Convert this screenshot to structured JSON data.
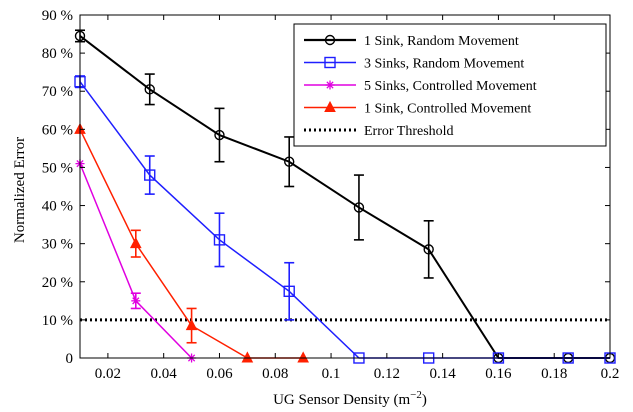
{
  "chart_data": {
    "type": "line",
    "title": "",
    "xlabel": "UG Sensor Density (m",
    "xlabel_sup": "−2",
    "xlabel_close": ")",
    "ylabel": "Normalized Error",
    "xlim": [
      0.01,
      0.2
    ],
    "ylim": [
      0,
      90
    ],
    "x_ticks": [
      0.02,
      0.04,
      0.06,
      0.08,
      0.1,
      0.12,
      0.14,
      0.16,
      0.18,
      0.2
    ],
    "x_tick_labels": [
      "0.02",
      "0.04",
      "0.06",
      "0.08",
      "0.1",
      "0.12",
      "0.14",
      "0.16",
      "0.18",
      "0.2"
    ],
    "y_ticks": [
      0,
      10,
      20,
      30,
      40,
      50,
      60,
      70,
      80,
      90
    ],
    "y_tick_labels": [
      "0",
      "10 %",
      "20 %",
      "30 %",
      "40 %",
      "50 %",
      "60 %",
      "70 %",
      "80 %",
      "90 %"
    ],
    "grid": false,
    "legend_position": "top-right",
    "series": [
      {
        "name": "1 Sink, Random Movement",
        "color": "#000000",
        "marker": "circle",
        "x": [
          0.01,
          0.035,
          0.06,
          0.085,
          0.11,
          0.135,
          0.16,
          0.185,
          0.2
        ],
        "y": [
          84.5,
          70.5,
          58.5,
          51.5,
          39.5,
          28.5,
          0,
          0,
          0
        ],
        "err": [
          1.5,
          4,
          7,
          6.5,
          8.5,
          7.5,
          0,
          0,
          0
        ]
      },
      {
        "name": "3 Sinks, Random Movement",
        "color": "#1f1fff",
        "marker": "square",
        "x": [
          0.01,
          0.035,
          0.06,
          0.085,
          0.11,
          0.135,
          0.16,
          0.185,
          0.2
        ],
        "y": [
          72.5,
          48,
          31,
          17.5,
          0,
          0,
          0,
          0,
          0
        ],
        "err": [
          1.5,
          5,
          7,
          7.5,
          0,
          0,
          0,
          0,
          0
        ]
      },
      {
        "name": "5 Sinks, Controlled Movement",
        "color": "#e000e0",
        "marker": "star",
        "x": [
          0.01,
          0.03,
          0.05
        ],
        "y": [
          51,
          15,
          0
        ],
        "err": [
          0,
          2,
          0
        ]
      },
      {
        "name": "1 Sink, Controlled Movement",
        "color": "#ff2000",
        "marker": "triangle",
        "x": [
          0.01,
          0.03,
          0.05,
          0.07,
          0.09
        ],
        "y": [
          60,
          30,
          8.5,
          0,
          0
        ],
        "err": [
          0,
          3.5,
          4.5,
          0,
          0
        ]
      }
    ],
    "threshold": {
      "name": "Error Threshold",
      "color": "#000000",
      "y": 10
    }
  }
}
